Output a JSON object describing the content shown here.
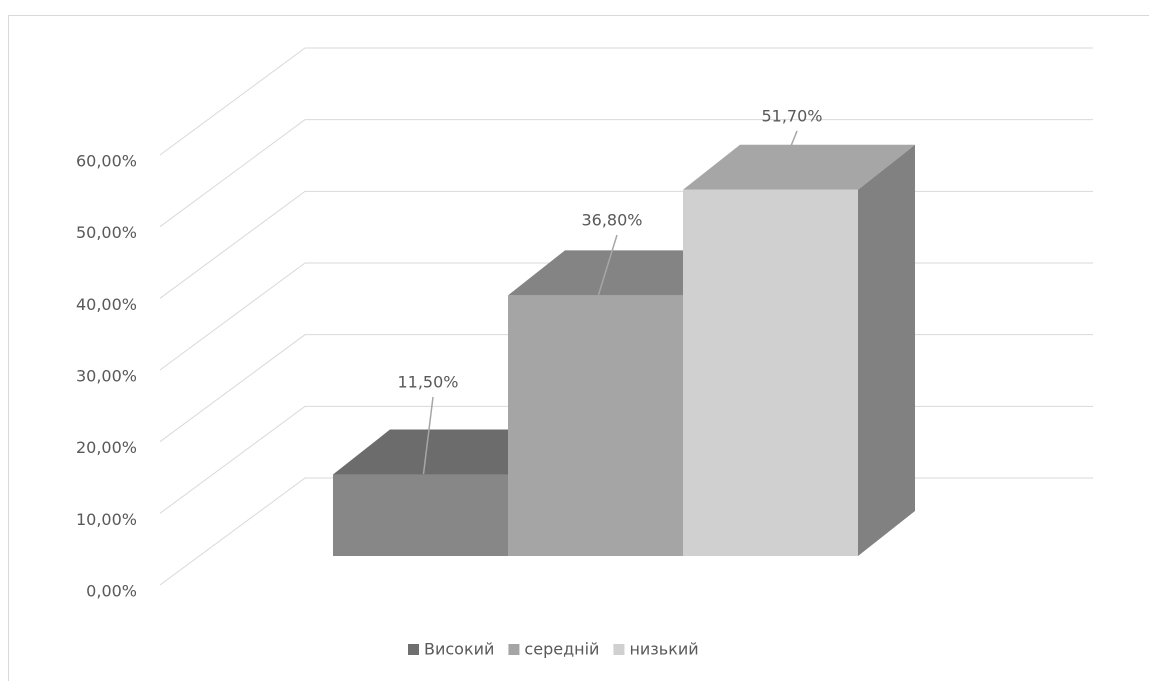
{
  "chart_data": {
    "type": "bar3d",
    "categories": [
      null
    ],
    "series": [
      {
        "name": "Високий",
        "color": "#878787",
        "values": [
          11.5
        ],
        "value_labels": [
          "11,50%"
        ]
      },
      {
        "name": "середній",
        "color": "#a5a5a5",
        "values": [
          36.8
        ],
        "value_labels": [
          "36,80%"
        ]
      },
      {
        "name": "низький",
        "color": "#d0d0d0",
        "values": [
          51.7
        ],
        "value_labels": [
          "51,70%"
        ]
      }
    ],
    "ylim": [
      0,
      60
    ],
    "yticks": [
      {
        "value": 0,
        "label": "0,00%"
      },
      {
        "value": 10,
        "label": "10,00%"
      },
      {
        "value": 20,
        "label": "20,00%"
      },
      {
        "value": 30,
        "label": "30,00%"
      },
      {
        "value": 40,
        "label": "40,00%"
      },
      {
        "value": 50,
        "label": "50,00%"
      },
      {
        "value": 60,
        "label": "60,00%"
      }
    ],
    "grid": true,
    "legend": "bottom"
  }
}
